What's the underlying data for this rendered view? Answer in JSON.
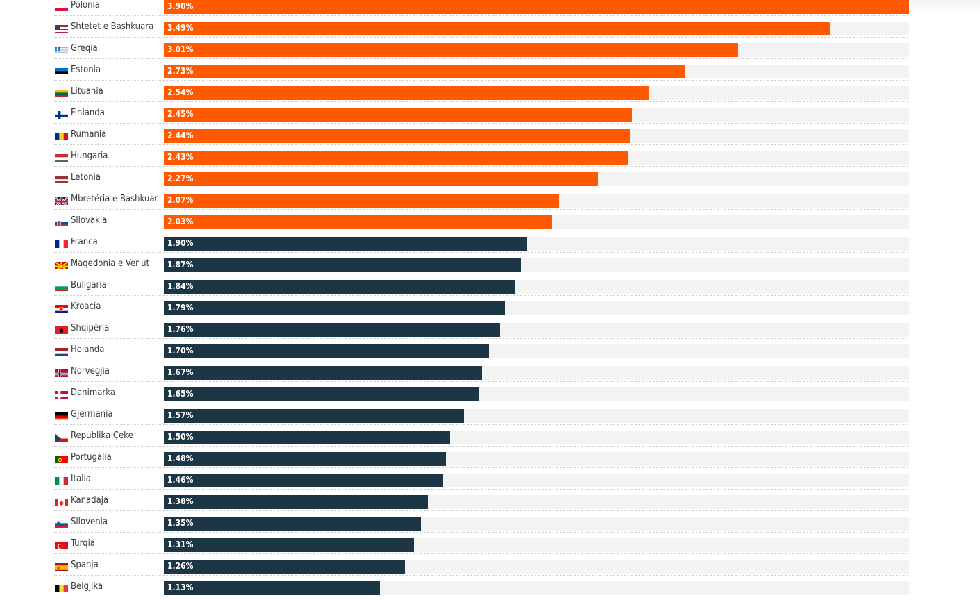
{
  "chart_data": {
    "type": "bar",
    "orientation": "horizontal",
    "title": "",
    "xlabel": "",
    "ylabel": "",
    "xlim": [
      0,
      3.9
    ],
    "unit": "%",
    "colors": {
      "above_threshold": "#ff5a00",
      "below_threshold": "#1c3645",
      "track": "#f3f3f3"
    },
    "threshold": 2.0,
    "categories": [
      "Polonia",
      "Shtetet e Bashkuara",
      "Greqia",
      "Estonia",
      "Lituania",
      "Finlanda",
      "Rumania",
      "Hungaria",
      "Letonia",
      "Mbretëria e Bashkuar",
      "Sllovakia",
      "Franca",
      "Maqedonia e Veriut",
      "Bullgaria",
      "Kroacia",
      "Shqipëria",
      "Holanda",
      "Norvegjia",
      "Danimarka",
      "Gjermania",
      "Republika Çeke",
      "Portugalia",
      "Italia",
      "Kanadaja",
      "Sllovenia",
      "Turqia",
      "Spanja",
      "Belgjika"
    ],
    "flags": [
      "pl",
      "us",
      "gr",
      "ee",
      "lt",
      "fi",
      "ro",
      "hu",
      "lv",
      "gb",
      "sk",
      "fr",
      "mk",
      "bg",
      "hr",
      "al",
      "nl",
      "no",
      "dk",
      "de",
      "cz",
      "pt",
      "it",
      "ca",
      "si",
      "tr",
      "es",
      "be"
    ],
    "values": [
      3.9,
      3.49,
      3.01,
      2.73,
      2.54,
      2.45,
      2.44,
      2.43,
      2.27,
      2.07,
      2.03,
      1.9,
      1.87,
      1.84,
      1.79,
      1.76,
      1.7,
      1.67,
      1.65,
      1.57,
      1.5,
      1.48,
      1.46,
      1.38,
      1.35,
      1.31,
      1.26,
      1.13
    ],
    "labels": [
      "3.90%",
      "3.49%",
      "3.01%",
      "2.73%",
      "2.54%",
      "2.45%",
      "2.44%",
      "2.43%",
      "2.27%",
      "2.07%",
      "2.03%",
      "1.90%",
      "1.87%",
      "1.84%",
      "1.79%",
      "1.76%",
      "1.70%",
      "1.67%",
      "1.65%",
      "1.57%",
      "1.50%",
      "1.48%",
      "1.46%",
      "1.38%",
      "1.35%",
      "1.31%",
      "1.26%",
      "1.13%"
    ]
  }
}
